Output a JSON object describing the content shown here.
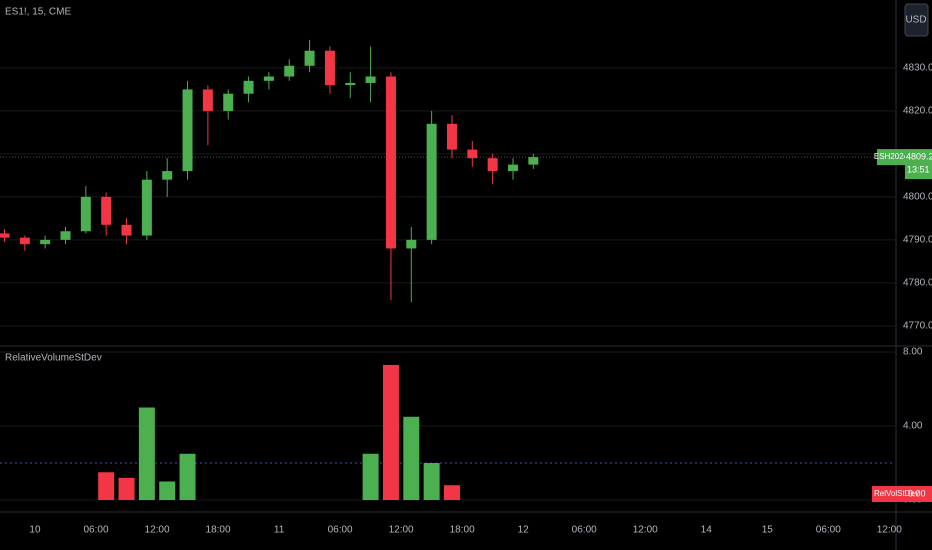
{
  "chart_data": [
    {
      "type": "candlestick",
      "title": "ES1!, 15, CME",
      "currency": "USD",
      "symbol": "ESH2024",
      "countdown": "13:51",
      "x": [
        -3,
        -1,
        1,
        3,
        5,
        7,
        9,
        11,
        13,
        15,
        17,
        19,
        21,
        23,
        25,
        27,
        29,
        31,
        33,
        35,
        37,
        39,
        41,
        43,
        45,
        47,
        49
      ],
      "open": [
        4791.5,
        4790.5,
        4789,
        4790,
        4792,
        4800,
        4793.5,
        4791,
        4804,
        4806,
        4825,
        4820,
        4824,
        4827,
        4828,
        4830.5,
        4834,
        4826,
        4826.5,
        4828,
        4788,
        4790,
        4817,
        4811,
        4809,
        4806,
        4807.5
      ],
      "high": [
        4792.5,
        4791,
        4791,
        4793,
        4802.5,
        4801,
        4795,
        4806,
        4809,
        4827,
        4826,
        4825,
        4828,
        4829,
        4832,
        4836.5,
        4835,
        4829,
        4835,
        4829,
        4793,
        4820,
        4819,
        4813,
        4810,
        4809,
        4810
      ],
      "low": [
        4789.5,
        4787.5,
        4788,
        4789,
        4791.5,
        4791,
        4789,
        4790,
        4800,
        4804,
        4812,
        4818,
        4822,
        4825,
        4827,
        4829,
        4824,
        4823,
        4822,
        4776,
        4775.5,
        4789,
        4809,
        4807,
        4803,
        4804,
        4806.5
      ],
      "close": [
        4790.5,
        4789,
        4790,
        4792,
        4800,
        4793.5,
        4791,
        4804,
        4806,
        4825,
        4820,
        4824,
        4827,
        4828,
        4830.5,
        4834,
        4826,
        4826.5,
        4828,
        4788,
        4790,
        4817,
        4811,
        4809,
        4806,
        4807.5,
        4809.25
      ],
      "up_color": "#4caf50",
      "down_color": "#f23645",
      "xlim": [
        -3.44,
        84.56
      ],
      "ylim": [
        4766.7,
        4845.8
      ],
      "yticks": [
        {
          "value": 4770,
          "label": "4770.00"
        },
        {
          "value": 4780,
          "label": "4780.00"
        },
        {
          "value": 4790,
          "label": "4790.00"
        },
        {
          "value": 4800,
          "label": "4800.00"
        },
        {
          "value": 4810,
          "label": "4810.00"
        },
        {
          "value": 4820,
          "label": "4820.00"
        },
        {
          "value": 4830,
          "label": "4830.00"
        }
      ],
      "grid": true
    },
    {
      "type": "bar",
      "title": "RelativeVolumeStDev",
      "badge_name": "RelVolStDev",
      "badge": {
        "value": 0,
        "label": "0.00"
      },
      "x": [
        -3,
        -1,
        1,
        3,
        5,
        7,
        9,
        11,
        13,
        15,
        17,
        19,
        21,
        23,
        25,
        27,
        29,
        31,
        33,
        35,
        37,
        39,
        41,
        43,
        45,
        47,
        49
      ],
      "values": [
        null,
        null,
        null,
        null,
        null,
        1.5,
        1.2,
        5.0,
        1.0,
        2.5,
        null,
        null,
        null,
        null,
        null,
        null,
        null,
        null,
        2.5,
        7.3,
        4.5,
        2.0,
        0.8,
        null,
        null,
        null,
        null
      ],
      "threshold": 2,
      "xlim": [
        -3.44,
        84.56
      ],
      "ylim": [
        0,
        8
      ],
      "yticks": [
        {
          "value": 0,
          "label": "0.00"
        },
        {
          "value": 4,
          "label": "4.00"
        },
        {
          "value": 8,
          "label": "8.00"
        }
      ],
      "xticks": [
        {
          "value": 0,
          "label": "10"
        },
        {
          "value": 6,
          "label": "06:00"
        },
        {
          "value": 12,
          "label": "12:00"
        },
        {
          "value": 18,
          "label": "18:00"
        },
        {
          "value": 24,
          "label": "11"
        },
        {
          "value": 30,
          "label": "06:00"
        },
        {
          "value": 36,
          "label": "12:00"
        },
        {
          "value": 42,
          "label": "18:00"
        },
        {
          "value": 48,
          "label": "12"
        },
        {
          "value": 54,
          "label": "06:00"
        },
        {
          "value": 60,
          "label": "12:00"
        },
        {
          "value": 66,
          "label": "14"
        },
        {
          "value": 72,
          "label": "15"
        },
        {
          "value": 78,
          "label": "06:00"
        },
        {
          "value": 84,
          "label": "12:00"
        }
      ],
      "grid": true
    }
  ]
}
